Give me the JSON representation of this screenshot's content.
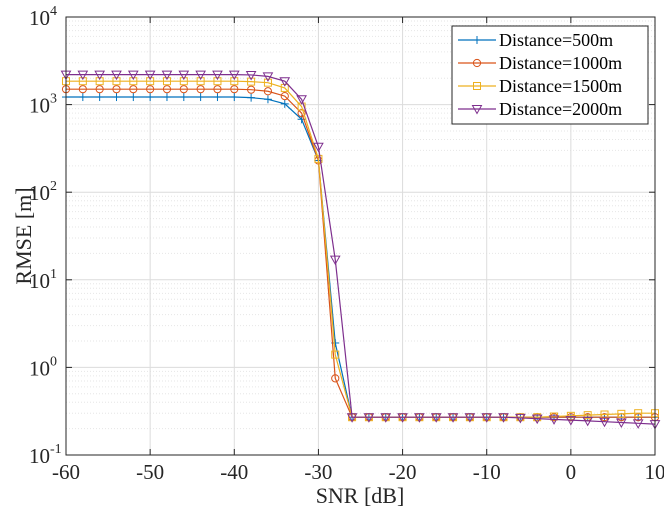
{
  "chart_data": {
    "type": "line",
    "title": "",
    "xlabel": "SNR [dB]",
    "ylabel": "RMSE [m]",
    "xlim": [
      -60,
      10
    ],
    "ylim": [
      0.1,
      10000
    ],
    "yscale": "log",
    "grid": true,
    "minor_grid": true,
    "legend_position": "top-right",
    "x_ticks": [
      -60,
      -50,
      -40,
      -30,
      -20,
      -10,
      0,
      10
    ],
    "x_tick_labels": [
      "-60",
      "-50",
      "-40",
      "-30",
      "-20",
      "-10",
      "0",
      "10"
    ],
    "y_ticks": [
      {
        "value": 0.1,
        "base": "10",
        "exp": "-1"
      },
      {
        "value": 1,
        "base": "10",
        "exp": "0"
      },
      {
        "value": 10,
        "base": "10",
        "exp": "1"
      },
      {
        "value": 100,
        "base": "10",
        "exp": "2"
      },
      {
        "value": 1000,
        "base": "10",
        "exp": "3"
      },
      {
        "value": 10000,
        "base": "10",
        "exp": "4"
      }
    ],
    "x": [
      -60,
      -58,
      -56,
      -54,
      -52,
      -50,
      -48,
      -46,
      -44,
      -42,
      -40,
      -38,
      -36,
      -34,
      -32,
      -30,
      -28,
      -26,
      -24,
      -22,
      -20,
      -18,
      -16,
      -14,
      -12,
      -10,
      -8,
      -6,
      -4,
      -2,
      0,
      2,
      4,
      6,
      8,
      10
    ],
    "series": [
      {
        "name": "Distance=500m",
        "color": "#0072BD",
        "marker": "plus",
        "values": [
          1220,
          1220,
          1220,
          1220,
          1220,
          1220,
          1220,
          1220,
          1220,
          1220,
          1220,
          1200,
          1150,
          1020,
          680,
          230,
          1.9,
          0.27,
          0.27,
          0.27,
          0.27,
          0.27,
          0.27,
          0.27,
          0.27,
          0.27,
          0.27,
          0.27,
          0.27,
          0.27,
          0.27,
          0.27,
          0.27,
          0.27,
          0.27,
          0.27
        ]
      },
      {
        "name": "Distance=1000m",
        "color": "#D95319",
        "marker": "circle",
        "values": [
          1500,
          1500,
          1500,
          1500,
          1500,
          1500,
          1500,
          1500,
          1500,
          1500,
          1500,
          1480,
          1420,
          1250,
          800,
          230,
          0.75,
          0.27,
          0.27,
          0.27,
          0.27,
          0.27,
          0.27,
          0.27,
          0.27,
          0.27,
          0.27,
          0.27,
          0.27,
          0.27,
          0.27,
          0.27,
          0.27,
          0.27,
          0.27,
          0.27
        ]
      },
      {
        "name": "Distance=1500m",
        "color": "#EDB120",
        "marker": "square",
        "values": [
          1850,
          1850,
          1850,
          1850,
          1850,
          1850,
          1850,
          1850,
          1850,
          1850,
          1850,
          1830,
          1780,
          1550,
          950,
          240,
          1.4,
          0.27,
          0.27,
          0.27,
          0.27,
          0.27,
          0.27,
          0.27,
          0.27,
          0.27,
          0.27,
          0.27,
          0.27,
          0.275,
          0.28,
          0.285,
          0.29,
          0.295,
          0.3,
          0.3
        ]
      },
      {
        "name": "Distance=2000m",
        "color": "#7E2F8E",
        "marker": "triangle-down",
        "values": [
          2200,
          2200,
          2200,
          2200,
          2200,
          2200,
          2200,
          2200,
          2200,
          2200,
          2200,
          2180,
          2100,
          1850,
          1150,
          330,
          17,
          0.27,
          0.27,
          0.27,
          0.27,
          0.27,
          0.27,
          0.27,
          0.27,
          0.27,
          0.27,
          0.265,
          0.26,
          0.255,
          0.25,
          0.245,
          0.24,
          0.235,
          0.23,
          0.225
        ]
      }
    ]
  }
}
